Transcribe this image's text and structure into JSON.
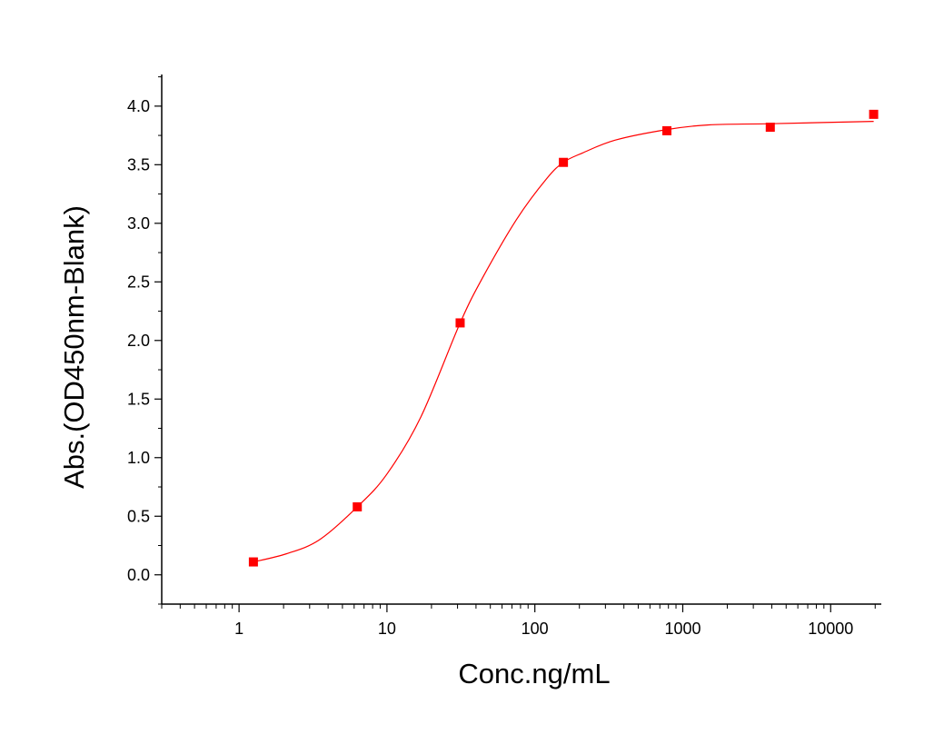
{
  "chart_data": {
    "type": "scatter",
    "title": "",
    "xlabel": "Conc.ng/mL",
    "ylabel": "Abs.(OD450nm-Blank)",
    "x_scale": "log",
    "xlim": [
      0.3,
      22000
    ],
    "ylim": [
      -0.25,
      4.27
    ],
    "x_ticks": [
      1,
      10,
      100,
      1000,
      10000
    ],
    "x_tick_labels": [
      "1",
      "10",
      "100",
      "1000",
      "10000"
    ],
    "y_ticks": [
      0.0,
      0.5,
      1.0,
      1.5,
      2.0,
      2.5,
      3.0,
      3.5,
      4.0
    ],
    "y_tick_labels": [
      "0.0",
      "0.5",
      "1.0",
      "1.5",
      "2.0",
      "2.5",
      "3.0",
      "3.5",
      "4.0"
    ],
    "grid": false,
    "legend": "none",
    "series": [
      {
        "marker": "square",
        "color": "#ff0000",
        "x": [
          1.25,
          6.3,
          31.25,
          156,
          781,
          3906,
          19531
        ],
        "y": [
          0.11,
          0.58,
          2.15,
          3.52,
          3.79,
          3.82,
          3.93
        ]
      }
    ],
    "fit_curve": {
      "color": "#ff0000",
      "x": [
        1.25,
        2.1,
        3.5,
        6.3,
        10,
        17,
        31.25,
        45,
        75,
        120,
        156,
        210,
        350,
        781,
        1500,
        3906,
        19531
      ],
      "y": [
        0.11,
        0.18,
        0.3,
        0.58,
        0.86,
        1.35,
        2.15,
        2.55,
        3.03,
        3.38,
        3.52,
        3.6,
        3.71,
        3.8,
        3.84,
        3.85,
        3.87
      ]
    }
  }
}
